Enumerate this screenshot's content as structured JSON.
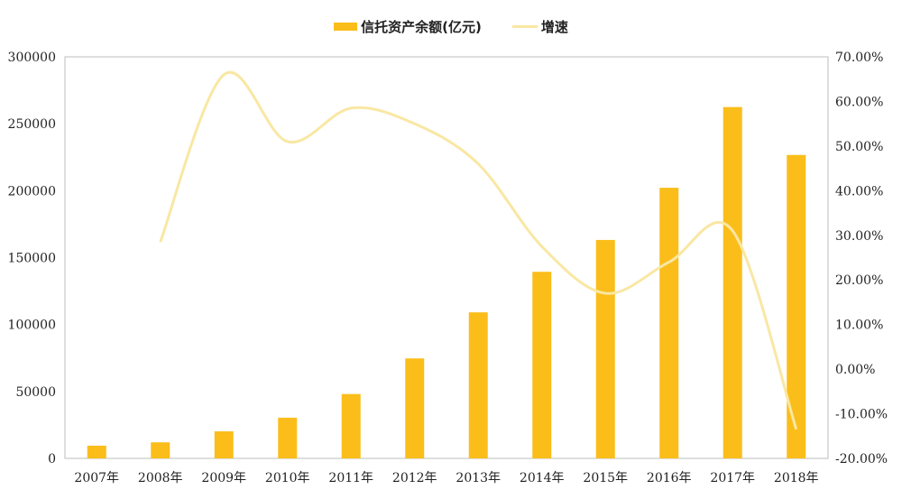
{
  "chart_data": {
    "type": "bar",
    "categories": [
      "2007年",
      "2008年",
      "2009年",
      "2010年",
      "2011年",
      "2012年",
      "2013年",
      "2014年",
      "2015年",
      "2016年",
      "2017年",
      "2018年"
    ],
    "series": [
      {
        "name": "信托资产余额(亿元)",
        "type": "bar",
        "axis": "left",
        "color": "#FABD1A",
        "values": [
          9500,
          12000,
          20200,
          30400,
          48100,
          74700,
          109100,
          139400,
          163200,
          202200,
          262500,
          226700
        ]
      },
      {
        "name": "增速",
        "type": "line",
        "axis": "right",
        "color": "#F9E7A3",
        "smooth": true,
        "values": [
          null,
          28.5,
          66.0,
          51.0,
          58.5,
          55.0,
          46.0,
          27.5,
          17.0,
          24.0,
          31.0,
          -13.5
        ]
      }
    ],
    "left_axis": {
      "ylim": [
        0,
        300000
      ],
      "ticks": [
        "0",
        "50000",
        "100000",
        "150000",
        "200000",
        "250000",
        "300000"
      ]
    },
    "right_axis": {
      "ylim": [
        -20,
        70
      ],
      "ticks": [
        "-20.00%",
        "-10.00%",
        "0.00%",
        "10.00%",
        "20.00%",
        "30.00%",
        "40.00%",
        "50.00%",
        "60.00%",
        "70.00%"
      ]
    },
    "grid": false,
    "legend": "top-center"
  }
}
